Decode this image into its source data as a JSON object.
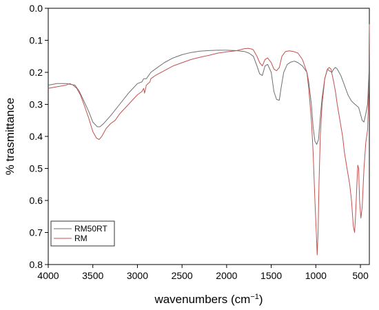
{
  "chart_data": {
    "type": "line",
    "title": "",
    "xlabel": "wavenumbers (cm",
    "xlabel_sup": "−1",
    "xlabel_close": ")",
    "ylabel": "% trasmittance",
    "xlim": [
      4000,
      400
    ],
    "ylim": [
      0.0,
      0.8
    ],
    "y_inverted": true,
    "x_ticks": [
      4000,
      3500,
      3000,
      2500,
      2000,
      1500,
      1000,
      500
    ],
    "y_ticks": [
      "0.0",
      "0.1",
      "0.2",
      "0.3",
      "0.4",
      "0.5",
      "0.6",
      "0.7",
      "0.8"
    ],
    "legend_position": "bottom-left",
    "grid": false,
    "series": [
      {
        "name": "RM50RT",
        "color": "#6e6e6e",
        "points": [
          [
            4000,
            0.24
          ],
          [
            3900,
            0.235
          ],
          [
            3800,
            0.235
          ],
          [
            3700,
            0.24
          ],
          [
            3650,
            0.26
          ],
          [
            3600,
            0.29
          ],
          [
            3550,
            0.32
          ],
          [
            3500,
            0.355
          ],
          [
            3450,
            0.37
          ],
          [
            3420,
            0.37
          ],
          [
            3380,
            0.36
          ],
          [
            3300,
            0.335
          ],
          [
            3200,
            0.3
          ],
          [
            3100,
            0.265
          ],
          [
            3000,
            0.235
          ],
          [
            2950,
            0.23
          ],
          [
            2930,
            0.22
          ],
          [
            2900,
            0.22
          ],
          [
            2850,
            0.2
          ],
          [
            2800,
            0.19
          ],
          [
            2700,
            0.17
          ],
          [
            2600,
            0.155
          ],
          [
            2500,
            0.145
          ],
          [
            2400,
            0.138
          ],
          [
            2300,
            0.134
          ],
          [
            2200,
            0.132
          ],
          [
            2100,
            0.131
          ],
          [
            2000,
            0.131
          ],
          [
            1900,
            0.132
          ],
          [
            1800,
            0.135
          ],
          [
            1750,
            0.14
          ],
          [
            1700,
            0.15
          ],
          [
            1660,
            0.18
          ],
          [
            1630,
            0.205
          ],
          [
            1600,
            0.21
          ],
          [
            1570,
            0.18
          ],
          [
            1540,
            0.175
          ],
          [
            1500,
            0.2
          ],
          [
            1470,
            0.26
          ],
          [
            1440,
            0.285
          ],
          [
            1410,
            0.287
          ],
          [
            1390,
            0.25
          ],
          [
            1360,
            0.2
          ],
          [
            1320,
            0.175
          ],
          [
            1280,
            0.168
          ],
          [
            1240,
            0.165
          ],
          [
            1200,
            0.17
          ],
          [
            1150,
            0.18
          ],
          [
            1100,
            0.2
          ],
          [
            1080,
            0.23
          ],
          [
            1050,
            0.3
          ],
          [
            1030,
            0.37
          ],
          [
            1010,
            0.415
          ],
          [
            990,
            0.425
          ],
          [
            970,
            0.41
          ],
          [
            950,
            0.34
          ],
          [
            930,
            0.28
          ],
          [
            900,
            0.22
          ],
          [
            870,
            0.19
          ],
          [
            850,
            0.195
          ],
          [
            820,
            0.2
          ],
          [
            800,
            0.19
          ],
          [
            780,
            0.185
          ],
          [
            760,
            0.19
          ],
          [
            720,
            0.21
          ],
          [
            680,
            0.24
          ],
          [
            640,
            0.27
          ],
          [
            600,
            0.29
          ],
          [
            560,
            0.3
          ],
          [
            520,
            0.31
          ],
          [
            500,
            0.33
          ],
          [
            480,
            0.35
          ],
          [
            460,
            0.355
          ],
          [
            440,
            0.33
          ],
          [
            420,
            0.3
          ],
          [
            405,
            0.2
          ],
          [
            400,
            0.05
          ]
        ]
      },
      {
        "name": "RM",
        "color": "#c0504d",
        "points": [
          [
            4000,
            0.25
          ],
          [
            3900,
            0.245
          ],
          [
            3800,
            0.24
          ],
          [
            3760,
            0.235
          ],
          [
            3720,
            0.24
          ],
          [
            3680,
            0.25
          ],
          [
            3640,
            0.27
          ],
          [
            3600,
            0.3
          ],
          [
            3550,
            0.34
          ],
          [
            3500,
            0.385
          ],
          [
            3460,
            0.405
          ],
          [
            3430,
            0.41
          ],
          [
            3400,
            0.4
          ],
          [
            3350,
            0.375
          ],
          [
            3300,
            0.36
          ],
          [
            3250,
            0.35
          ],
          [
            3200,
            0.33
          ],
          [
            3100,
            0.3
          ],
          [
            3000,
            0.27
          ],
          [
            2950,
            0.26
          ],
          [
            2930,
            0.25
          ],
          [
            2920,
            0.265
          ],
          [
            2900,
            0.24
          ],
          [
            2860,
            0.23
          ],
          [
            2850,
            0.22
          ],
          [
            2800,
            0.21
          ],
          [
            2700,
            0.195
          ],
          [
            2600,
            0.18
          ],
          [
            2500,
            0.17
          ],
          [
            2400,
            0.16
          ],
          [
            2300,
            0.153
          ],
          [
            2200,
            0.147
          ],
          [
            2100,
            0.14
          ],
          [
            2000,
            0.136
          ],
          [
            1900,
            0.133
          ],
          [
            1800,
            0.126
          ],
          [
            1760,
            0.125
          ],
          [
            1720,
            0.127
          ],
          [
            1700,
            0.13
          ],
          [
            1660,
            0.15
          ],
          [
            1630,
            0.17
          ],
          [
            1600,
            0.18
          ],
          [
            1570,
            0.16
          ],
          [
            1540,
            0.155
          ],
          [
            1500,
            0.17
          ],
          [
            1470,
            0.19
          ],
          [
            1440,
            0.195
          ],
          [
            1410,
            0.185
          ],
          [
            1380,
            0.15
          ],
          [
            1340,
            0.135
          ],
          [
            1300,
            0.133
          ],
          [
            1250,
            0.135
          ],
          [
            1200,
            0.14
          ],
          [
            1150,
            0.16
          ],
          [
            1100,
            0.2
          ],
          [
            1080,
            0.25
          ],
          [
            1050,
            0.35
          ],
          [
            1030,
            0.45
          ],
          [
            1010,
            0.6
          ],
          [
            995,
            0.7
          ],
          [
            985,
            0.77
          ],
          [
            975,
            0.7
          ],
          [
            965,
            0.55
          ],
          [
            950,
            0.4
          ],
          [
            930,
            0.3
          ],
          [
            900,
            0.22
          ],
          [
            870,
            0.19
          ],
          [
            850,
            0.185
          ],
          [
            830,
            0.19
          ],
          [
            800,
            0.23
          ],
          [
            780,
            0.26
          ],
          [
            760,
            0.3
          ],
          [
            730,
            0.35
          ],
          [
            700,
            0.4
          ],
          [
            680,
            0.45
          ],
          [
            650,
            0.5
          ],
          [
            620,
            0.55
          ],
          [
            600,
            0.6
          ],
          [
            580,
            0.68
          ],
          [
            565,
            0.7
          ],
          [
            555,
            0.65
          ],
          [
            540,
            0.55
          ],
          [
            530,
            0.49
          ],
          [
            520,
            0.5
          ],
          [
            510,
            0.6
          ],
          [
            495,
            0.655
          ],
          [
            480,
            0.62
          ],
          [
            460,
            0.5
          ],
          [
            440,
            0.42
          ],
          [
            420,
            0.38
          ],
          [
            405,
            0.25
          ],
          [
            400,
            0.05
          ]
        ]
      }
    ]
  }
}
